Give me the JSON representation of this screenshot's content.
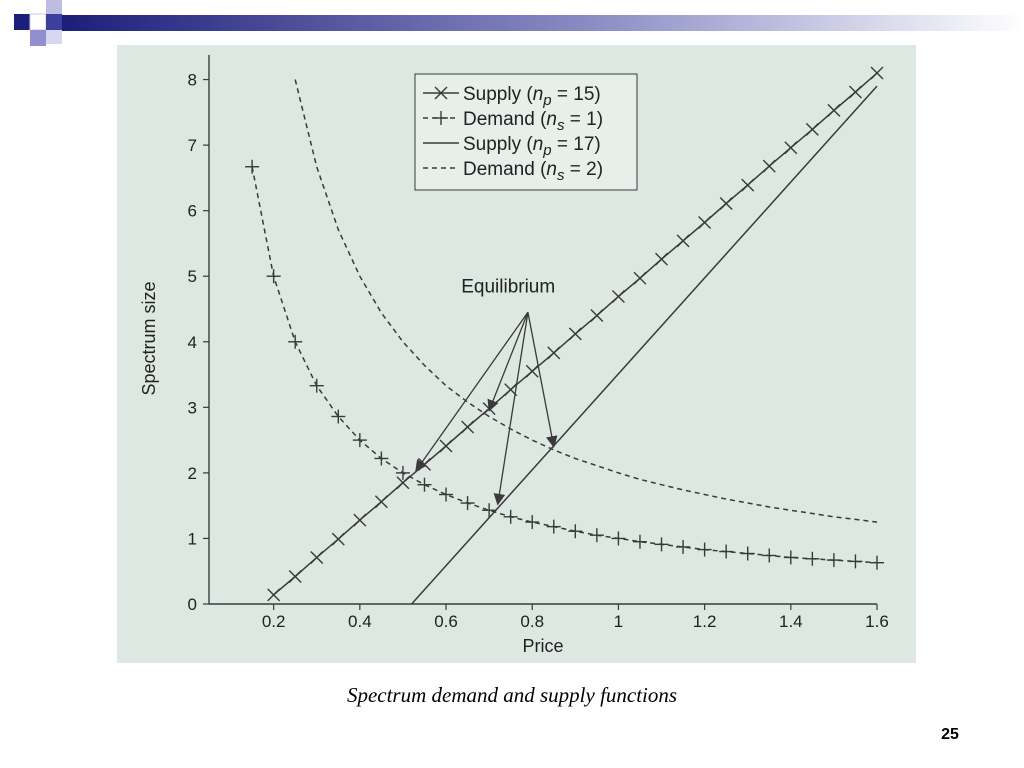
{
  "slide": {
    "caption": "Spectrum demand and supply functions",
    "number": "25",
    "colors": {
      "accent_navy": "#1c1f7a",
      "accent_lavender": "#8f8fd1",
      "panel_background": "#dce8e1",
      "line": "#3a3a3a"
    }
  },
  "chart_data": {
    "type": "line",
    "title": "",
    "xlabel": "Price",
    "ylabel": "Spectrum size",
    "xlim": [
      0.05,
      1.6
    ],
    "ylim": [
      0,
      8.1
    ],
    "xticks": [
      "0.2",
      "0.4",
      "0.6",
      "0.8",
      "1",
      "1.2",
      "1.4",
      "1.6"
    ],
    "yticks": [
      "0",
      "1",
      "2",
      "3",
      "4",
      "5",
      "6",
      "7",
      "8"
    ],
    "grid": false,
    "legend_position": "top-right",
    "series": [
      {
        "name": "Supply (n_p = 15)",
        "legend": {
          "pre": "Supply (",
          "var": "n",
          "sub": "p",
          "post": " = 15)"
        },
        "style": "solid-x",
        "x": [
          0.2,
          0.25,
          0.3,
          0.35,
          0.4,
          0.45,
          0.5,
          0.55,
          0.6,
          0.65,
          0.7,
          0.75,
          0.8,
          0.85,
          0.9,
          0.95,
          1.0,
          1.05,
          1.1,
          1.15,
          1.2,
          1.25,
          1.3,
          1.35,
          1.4,
          1.45,
          1.5,
          1.55,
          1.6
        ],
        "y": [
          0.14,
          0.42,
          0.71,
          0.99,
          1.28,
          1.56,
          1.85,
          2.13,
          2.41,
          2.7,
          2.98,
          3.27,
          3.55,
          3.83,
          4.12,
          4.4,
          4.69,
          4.97,
          5.26,
          5.54,
          5.82,
          6.11,
          6.39,
          6.68,
          6.96,
          7.24,
          7.53,
          7.81,
          8.1
        ]
      },
      {
        "name": "Demand (n_s = 1)",
        "legend": {
          "pre": "Demand (",
          "var": "n",
          "sub": "s",
          "post": " = 1)"
        },
        "style": "dashed-plus",
        "x": [
          0.15,
          0.2,
          0.25,
          0.3,
          0.35,
          0.4,
          0.45,
          0.5,
          0.55,
          0.6,
          0.65,
          0.7,
          0.75,
          0.8,
          0.85,
          0.9,
          0.95,
          1.0,
          1.05,
          1.1,
          1.15,
          1.2,
          1.25,
          1.3,
          1.35,
          1.4,
          1.45,
          1.5,
          1.55,
          1.6
        ],
        "y": [
          6.67,
          5.0,
          4.0,
          3.33,
          2.86,
          2.5,
          2.22,
          2.0,
          1.82,
          1.67,
          1.54,
          1.43,
          1.33,
          1.25,
          1.18,
          1.11,
          1.05,
          1.0,
          0.95,
          0.91,
          0.87,
          0.83,
          0.8,
          0.77,
          0.74,
          0.71,
          0.69,
          0.67,
          0.65,
          0.63
        ]
      },
      {
        "name": "Supply (n_p = 17)",
        "legend": {
          "pre": "Supply (",
          "var": "n",
          "sub": "p",
          "post": " = 17)"
        },
        "style": "solid",
        "x": [
          0.52,
          1.6
        ],
        "y": [
          0.0,
          7.9
        ]
      },
      {
        "name": "Demand (n_s = 2)",
        "legend": {
          "pre": "Demand (",
          "var": "n",
          "sub": "s",
          "post": " = 2)"
        },
        "style": "dashed",
        "x": [
          0.25,
          0.3,
          0.35,
          0.4,
          0.45,
          0.5,
          0.55,
          0.6,
          0.65,
          0.7,
          0.75,
          0.8,
          0.85,
          0.9,
          0.95,
          1.0,
          1.05,
          1.1,
          1.15,
          1.2,
          1.25,
          1.3,
          1.35,
          1.4,
          1.45,
          1.5,
          1.55,
          1.6
        ],
        "y": [
          8.0,
          6.67,
          5.71,
          5.0,
          4.44,
          4.0,
          3.64,
          3.33,
          3.08,
          2.86,
          2.67,
          2.5,
          2.35,
          2.22,
          2.11,
          2.0,
          1.9,
          1.82,
          1.74,
          1.67,
          1.6,
          1.54,
          1.48,
          1.43,
          1.38,
          1.33,
          1.29,
          1.25
        ]
      }
    ],
    "annotations": [
      {
        "text": "Equilibrium",
        "targets": [
          [
            0.53,
            2.03
          ],
          [
            0.72,
            1.52
          ],
          [
            0.7,
            2.95
          ],
          [
            0.85,
            2.4
          ]
        ]
      }
    ]
  }
}
